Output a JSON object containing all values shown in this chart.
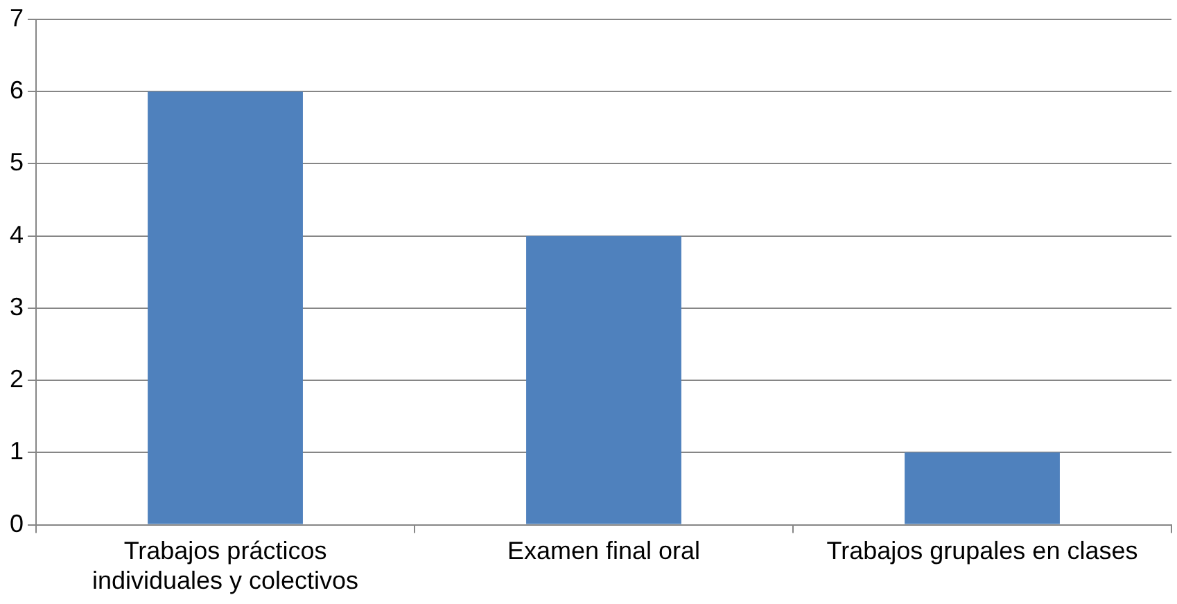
{
  "chart_data": {
    "type": "bar",
    "categories": [
      "Trabajos prácticos individuales y colectivos",
      "Examen final oral",
      "Trabajos grupales en clases"
    ],
    "values": [
      6,
      4,
      1
    ],
    "color": "#4f81bd",
    "ylim": [
      0,
      7
    ],
    "yticks": [
      0,
      1,
      2,
      3,
      4,
      5,
      6,
      7
    ],
    "grid": "y",
    "legend": false
  }
}
